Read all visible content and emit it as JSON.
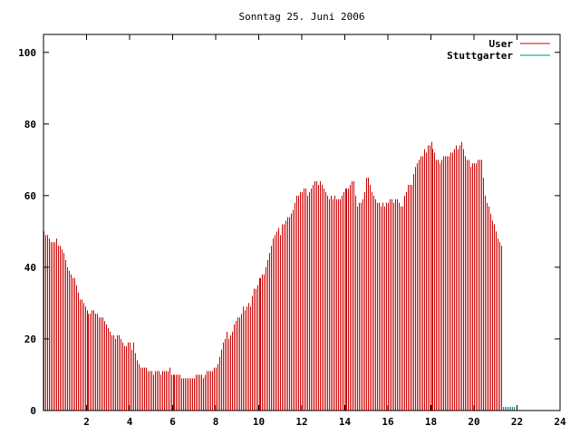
{
  "chart_data": {
    "type": "bar",
    "title": "Sonntag 25. Juni 2006",
    "xlabel": "",
    "ylabel": "",
    "xlim": [
      0,
      24
    ],
    "ylim": [
      0,
      105
    ],
    "x_ticks": [
      2,
      4,
      6,
      8,
      10,
      12,
      14,
      16,
      18,
      20,
      22,
      24
    ],
    "y_ticks": [
      0,
      20,
      40,
      60,
      80,
      100
    ],
    "grid": false,
    "legend_position": "top-right",
    "interval_minutes": 5,
    "series": [
      {
        "name": "User",
        "color": "#cc0000",
        "values": [
          50,
          49,
          49,
          48,
          47,
          47,
          47,
          48,
          46,
          46,
          45,
          44,
          42,
          40,
          39,
          38,
          37,
          37,
          35,
          33,
          31,
          31,
          30,
          29,
          28,
          27,
          27,
          28,
          28,
          27,
          27,
          26,
          26,
          26,
          25,
          24,
          23,
          22,
          21,
          21,
          20,
          21,
          21,
          20,
          19,
          18,
          18,
          19,
          19,
          17,
          19,
          16,
          14,
          13,
          12,
          12,
          12,
          12,
          11,
          11,
          11,
          10,
          11,
          11,
          11,
          10,
          11,
          11,
          11,
          11,
          12,
          10,
          10,
          10,
          10,
          10,
          10,
          9,
          9,
          9,
          9,
          9,
          9,
          9,
          9,
          10,
          10,
          10,
          10,
          9,
          10,
          11,
          11,
          11,
          11,
          12,
          12,
          13,
          15,
          17,
          19,
          20,
          22,
          20,
          21,
          22,
          24,
          25,
          26,
          26,
          27,
          29,
          28,
          29,
          30,
          29,
          32,
          34,
          34,
          35,
          37,
          37,
          38,
          38,
          40,
          42,
          44,
          46,
          48,
          49,
          50,
          51,
          49,
          52,
          52,
          53,
          54,
          54,
          55,
          56,
          58,
          60,
          60,
          61,
          61,
          62,
          62,
          60,
          61,
          62,
          63,
          64,
          64,
          63,
          64,
          63,
          62,
          61,
          60,
          59,
          60,
          59,
          60,
          59,
          59,
          59,
          60,
          61,
          62,
          62,
          62,
          63,
          64,
          64,
          60,
          57,
          58,
          58,
          59,
          61,
          65,
          65,
          63,
          61,
          60,
          59,
          58,
          58,
          57,
          58,
          57,
          58,
          58,
          59,
          59,
          58,
          59,
          59,
          58,
          57,
          57,
          60,
          61,
          63,
          63,
          63,
          66,
          68,
          69,
          70,
          71,
          71,
          73,
          72,
          74,
          74,
          75,
          73,
          72,
          70,
          70,
          69,
          70,
          71,
          71,
          71,
          71,
          72,
          72,
          73,
          74,
          73,
          74,
          75,
          73,
          71,
          70,
          70,
          68,
          69,
          69,
          69,
          70,
          70,
          70,
          65,
          60,
          58,
          57,
          55,
          53,
          52,
          50,
          48,
          47,
          46
        ]
      },
      {
        "name": "Stuttgarter",
        "color": "#008b8b",
        "values": [
          1,
          1,
          1,
          1,
          1,
          1,
          1,
          1,
          1,
          1,
          1,
          1,
          1,
          1,
          1,
          1,
          1,
          1,
          1,
          1,
          1,
          1,
          0,
          0,
          0,
          0,
          0,
          0,
          0,
          0,
          0,
          0,
          0,
          0,
          0,
          0,
          0,
          0,
          0,
          0,
          0,
          0,
          0,
          0,
          0,
          0,
          0,
          0,
          0,
          0,
          0,
          0,
          0,
          0,
          0,
          0,
          0,
          0,
          0,
          0,
          0,
          0,
          0,
          0,
          0,
          0,
          0,
          0,
          0,
          0,
          0,
          0,
          0,
          0,
          0,
          0,
          0,
          0,
          0,
          0,
          0,
          0,
          0,
          0,
          0,
          0,
          0,
          0,
          0,
          0,
          0,
          0,
          0,
          0,
          0,
          0,
          0,
          0,
          0,
          0,
          0,
          0,
          0,
          0,
          0,
          0,
          0,
          0,
          0,
          0,
          0,
          0,
          0,
          0,
          0,
          0,
          0,
          0,
          0,
          0,
          0,
          0,
          0,
          0,
          0,
          0,
          0,
          0,
          0,
          0,
          0,
          0,
          1,
          1,
          1,
          1,
          1,
          1,
          1,
          1,
          1,
          1,
          1,
          1,
          1,
          1,
          1,
          1,
          1,
          1,
          1,
          1,
          1,
          1,
          1,
          1,
          1,
          1,
          1,
          1,
          1,
          1,
          1,
          1,
          1,
          1,
          1,
          1,
          1,
          1,
          1,
          1,
          1,
          1,
          1,
          1,
          1,
          1,
          1,
          1,
          1,
          1,
          1,
          1,
          1,
          1,
          1,
          1,
          1,
          1,
          1,
          1,
          1,
          1,
          1,
          1,
          1,
          1,
          1,
          1,
          1,
          1,
          1,
          1,
          1,
          1,
          1,
          1,
          1,
          1,
          1,
          1,
          1,
          1,
          1,
          1,
          1,
          1,
          1,
          1,
          1,
          1,
          1,
          1,
          1,
          1,
          1,
          1,
          1,
          1,
          1,
          1,
          1,
          1,
          1,
          1,
          1,
          1,
          1,
          1,
          1,
          1,
          1,
          1,
          1,
          1,
          1,
          1,
          1,
          1,
          1,
          1,
          1,
          1,
          1,
          1,
          1,
          1,
          1,
          1,
          1,
          1,
          1
        ]
      }
    ]
  }
}
